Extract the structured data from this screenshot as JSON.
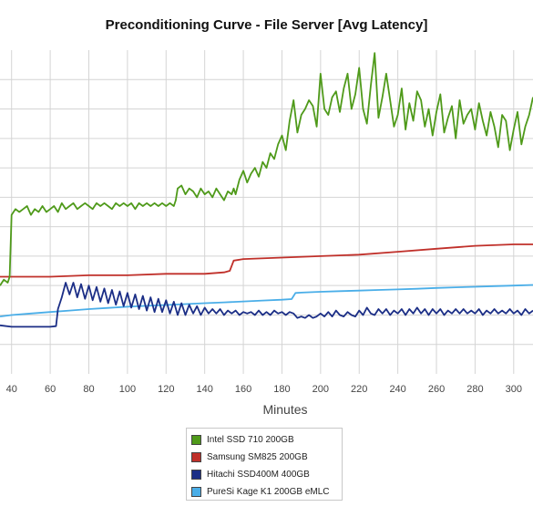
{
  "chart_data": {
    "type": "line",
    "title": "Preconditioning Curve - File Server [Avg Latency]",
    "xlabel": "Minutes",
    "ylabel": "",
    "xlim": [
      34,
      310
    ],
    "ylim": [
      0,
      11
    ],
    "grid": true,
    "legend_position": "bottom-center",
    "x_ticks": [
      40,
      60,
      80,
      100,
      120,
      140,
      160,
      180,
      200,
      220,
      240,
      260,
      280,
      300
    ],
    "series": [
      {
        "name": "Intel SSD 710 200GB",
        "color": "#4f9a1a",
        "x": [
          34,
          36,
          38,
          39,
          40,
          42,
          44,
          46,
          48,
          50,
          52,
          54,
          56,
          58,
          60,
          62,
          64,
          66,
          68,
          70,
          72,
          74,
          76,
          78,
          80,
          82,
          84,
          86,
          88,
          90,
          92,
          94,
          96,
          98,
          100,
          102,
          104,
          106,
          108,
          110,
          112,
          114,
          116,
          118,
          120,
          122,
          124,
          125,
          126,
          128,
          130,
          132,
          134,
          136,
          138,
          140,
          142,
          144,
          146,
          148,
          150,
          152,
          154,
          155,
          156,
          158,
          160,
          162,
          164,
          166,
          168,
          170,
          172,
          174,
          176,
          178,
          180,
          182,
          184,
          186,
          188,
          190,
          192,
          194,
          196,
          198,
          200,
          202,
          204,
          206,
          208,
          210,
          212,
          214,
          216,
          218,
          220,
          222,
          224,
          226,
          228,
          230,
          232,
          234,
          236,
          238,
          240,
          242,
          244,
          246,
          248,
          250,
          252,
          254,
          256,
          258,
          260,
          262,
          264,
          266,
          268,
          270,
          272,
          274,
          276,
          278,
          280,
          282,
          284,
          286,
          288,
          290,
          292,
          294,
          296,
          298,
          300,
          302,
          304,
          306,
          308,
          310
        ],
        "values": [
          3.0,
          3.2,
          3.1,
          3.3,
          5.4,
          5.6,
          5.5,
          5.6,
          5.7,
          5.4,
          5.6,
          5.5,
          5.7,
          5.5,
          5.6,
          5.7,
          5.5,
          5.8,
          5.6,
          5.7,
          5.8,
          5.6,
          5.7,
          5.8,
          5.7,
          5.6,
          5.8,
          5.7,
          5.8,
          5.7,
          5.6,
          5.8,
          5.7,
          5.8,
          5.7,
          5.8,
          5.6,
          5.8,
          5.7,
          5.8,
          5.7,
          5.8,
          5.7,
          5.8,
          5.7,
          5.8,
          5.7,
          5.9,
          6.3,
          6.4,
          6.1,
          6.3,
          6.2,
          6.0,
          6.3,
          6.1,
          6.2,
          6.0,
          6.3,
          6.1,
          5.9,
          6.2,
          6.1,
          6.3,
          6.1,
          6.6,
          6.9,
          6.5,
          6.8,
          7.0,
          6.7,
          7.2,
          7.0,
          7.5,
          7.3,
          7.8,
          8.1,
          7.6,
          8.6,
          9.3,
          8.2,
          8.8,
          9.0,
          9.3,
          9.1,
          8.4,
          10.2,
          9.0,
          8.8,
          9.4,
          9.6,
          8.9,
          9.7,
          10.2,
          9.0,
          9.5,
          10.4,
          9.0,
          8.5,
          9.8,
          10.9,
          8.7,
          9.4,
          10.2,
          9.3,
          8.4,
          8.8,
          9.7,
          8.3,
          9.2,
          8.6,
          9.6,
          9.3,
          8.4,
          9.0,
          8.1,
          8.9,
          9.5,
          8.2,
          8.7,
          9.1,
          8.0,
          9.3,
          8.5,
          8.8,
          9.0,
          8.3,
          9.2,
          8.6,
          8.1,
          8.9,
          8.4,
          7.7,
          8.8,
          8.6,
          7.6,
          8.3,
          8.9,
          7.8,
          8.4,
          8.8,
          9.4
        ]
      },
      {
        "name": "Samsung SM825 200GB",
        "color": "#c0302a",
        "x": [
          34,
          40,
          60,
          80,
          100,
          120,
          140,
          150,
          153,
          155,
          160,
          180,
          200,
          220,
          240,
          260,
          280,
          300,
          310
        ],
        "values": [
          3.3,
          3.3,
          3.3,
          3.35,
          3.35,
          3.4,
          3.4,
          3.45,
          3.5,
          3.85,
          3.9,
          3.95,
          4.0,
          4.05,
          4.15,
          4.25,
          4.35,
          4.4,
          4.4
        ]
      },
      {
        "name": "Hitachi SSD400M 400GB",
        "color": "#1b2e86",
        "x": [
          34,
          40,
          50,
          60,
          63,
          64,
          66,
          68,
          70,
          72,
          74,
          76,
          78,
          80,
          82,
          84,
          86,
          88,
          90,
          92,
          94,
          96,
          98,
          100,
          102,
          104,
          106,
          108,
          110,
          112,
          114,
          116,
          118,
          120,
          122,
          124,
          126,
          128,
          130,
          132,
          134,
          136,
          138,
          140,
          142,
          144,
          146,
          148,
          150,
          152,
          154,
          156,
          158,
          160,
          162,
          164,
          166,
          168,
          170,
          172,
          174,
          176,
          178,
          180,
          182,
          184,
          186,
          188,
          190,
          192,
          194,
          196,
          198,
          200,
          202,
          204,
          206,
          208,
          210,
          212,
          214,
          216,
          218,
          220,
          222,
          224,
          226,
          228,
          230,
          232,
          234,
          236,
          238,
          240,
          242,
          244,
          246,
          248,
          250,
          252,
          254,
          256,
          258,
          260,
          262,
          264,
          266,
          268,
          270,
          272,
          274,
          276,
          278,
          280,
          282,
          284,
          286,
          288,
          290,
          292,
          294,
          296,
          298,
          300,
          302,
          304,
          306,
          308,
          310
        ],
        "values": [
          1.65,
          1.6,
          1.6,
          1.6,
          1.62,
          2.2,
          2.6,
          3.1,
          2.7,
          3.1,
          2.6,
          3.05,
          2.55,
          3.0,
          2.5,
          2.95,
          2.45,
          2.9,
          2.4,
          2.85,
          2.35,
          2.8,
          2.3,
          2.75,
          2.25,
          2.7,
          2.2,
          2.65,
          2.15,
          2.6,
          2.1,
          2.55,
          2.1,
          2.5,
          2.05,
          2.45,
          2.0,
          2.4,
          2.0,
          2.35,
          2.05,
          2.3,
          2.0,
          2.25,
          2.05,
          2.2,
          2.05,
          2.2,
          2.0,
          2.15,
          2.05,
          2.15,
          2.0,
          2.1,
          2.05,
          2.1,
          2.0,
          2.15,
          2.0,
          2.1,
          2.0,
          2.15,
          2.05,
          2.1,
          2.0,
          2.1,
          2.05,
          1.9,
          1.95,
          1.9,
          2.0,
          1.9,
          1.95,
          2.05,
          1.95,
          2.1,
          1.95,
          2.15,
          2.0,
          1.95,
          2.1,
          2.0,
          1.95,
          2.15,
          2.0,
          2.25,
          2.05,
          2.0,
          2.2,
          2.05,
          2.2,
          2.0,
          2.15,
          2.05,
          2.2,
          2.0,
          2.2,
          2.05,
          2.25,
          2.05,
          2.2,
          2.0,
          2.2,
          2.05,
          2.2,
          2.0,
          2.15,
          2.05,
          2.2,
          2.05,
          2.2,
          2.05,
          2.15,
          2.05,
          2.2,
          2.0,
          2.15,
          2.05,
          2.2,
          2.05,
          2.15,
          2.05,
          2.2,
          2.05,
          2.15,
          2.0,
          2.2,
          2.05,
          2.15
        ]
      },
      {
        "name": "PureSi Kage K1 200GB eMLC",
        "color": "#4aaee8",
        "x": [
          34,
          40,
          50,
          60,
          70,
          80,
          90,
          100,
          110,
          120,
          130,
          140,
          150,
          160,
          170,
          180,
          185,
          187,
          190,
          200,
          210,
          220,
          230,
          240,
          250,
          260,
          270,
          280,
          290,
          300,
          310
        ],
        "values": [
          1.95,
          2.0,
          2.05,
          2.1,
          2.15,
          2.2,
          2.24,
          2.28,
          2.31,
          2.34,
          2.37,
          2.4,
          2.43,
          2.46,
          2.49,
          2.52,
          2.54,
          2.75,
          2.76,
          2.79,
          2.81,
          2.83,
          2.85,
          2.87,
          2.89,
          2.92,
          2.94,
          2.96,
          2.98,
          3.0,
          3.02
        ]
      }
    ]
  }
}
